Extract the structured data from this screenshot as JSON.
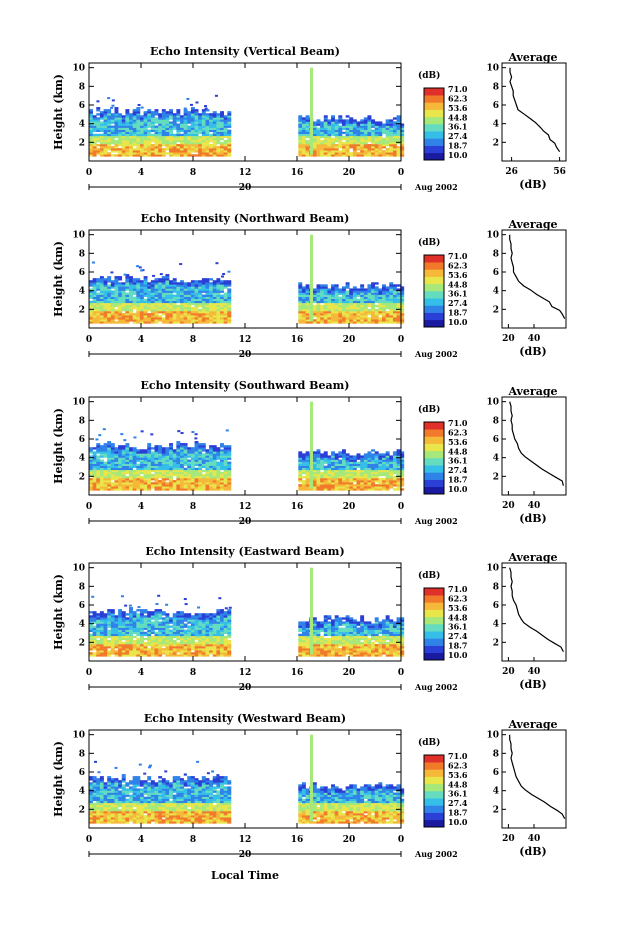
{
  "chart_data": {
    "type": "heatmap",
    "xlabel": "Local Time",
    "date_day": "20",
    "date_label": "Aug 2002",
    "colorbar": {
      "unit": "(dB)",
      "ticks": [
        "71.0",
        "62.3",
        "53.6",
        "44.8",
        "36.1",
        "27.4",
        "18.7",
        "10.0"
      ],
      "colors": [
        "#1a1aa0",
        "#2a3fd6",
        "#2f82e8",
        "#35bfe8",
        "#63dcc0",
        "#a6e87a",
        "#e8e64a",
        "#f5b838",
        "#f07a2a",
        "#e0302a"
      ]
    },
    "x_ticks": [
      "0",
      "4",
      "8",
      "12",
      "16",
      "20",
      "0"
    ],
    "y_ticks": [
      "2",
      "4",
      "6",
      "8",
      "10"
    ],
    "ylabel": "Height (km)",
    "avg_title": "Average",
    "avg_xlabel": "(dB)",
    "panels": [
      {
        "title": "Echo Intensity (Vertical Beam)",
        "avg_xticks": [
          "26",
          "56"
        ],
        "avg_xlim": [
          20,
          60
        ],
        "avg_profile": [
          [
            56,
            1.0
          ],
          [
            54,
            1.5
          ],
          [
            53,
            1.9
          ],
          [
            50,
            2.3
          ],
          [
            49,
            2.8
          ],
          [
            46,
            3.2
          ],
          [
            44,
            3.6
          ],
          [
            41,
            4.1
          ],
          [
            38,
            4.5
          ],
          [
            34,
            5.0
          ],
          [
            30,
            5.5
          ],
          [
            29,
            6.0
          ],
          [
            28,
            6.5
          ],
          [
            27,
            7.0
          ],
          [
            27,
            7.5
          ],
          [
            26,
            8.0
          ],
          [
            25,
            8.5
          ],
          [
            26,
            9.0
          ],
          [
            25,
            9.5
          ],
          [
            25,
            10.0
          ]
        ]
      },
      {
        "title": "Echo Intensity (Northward Beam)",
        "avg_xticks": [
          "20",
          "40"
        ],
        "avg_xlim": [
          15,
          65
        ],
        "avg_profile": [
          [
            64,
            1.0
          ],
          [
            62,
            1.5
          ],
          [
            60,
            1.9
          ],
          [
            54,
            2.3
          ],
          [
            52,
            2.8
          ],
          [
            47,
            3.2
          ],
          [
            42,
            3.6
          ],
          [
            37,
            4.1
          ],
          [
            32,
            4.5
          ],
          [
            28,
            5.0
          ],
          [
            26,
            5.5
          ],
          [
            24,
            6.0
          ],
          [
            24,
            6.5
          ],
          [
            23,
            7.0
          ],
          [
            22,
            7.5
          ],
          [
            23,
            8.0
          ],
          [
            22,
            8.5
          ],
          [
            22,
            9.0
          ],
          [
            21,
            9.5
          ],
          [
            21,
            10.0
          ]
        ]
      },
      {
        "title": "Echo Intensity (Southward Beam)",
        "avg_xticks": [
          "20",
          "40"
        ],
        "avg_xlim": [
          15,
          65
        ],
        "avg_profile": [
          [
            63,
            1.0
          ],
          [
            62,
            1.5
          ],
          [
            57,
            1.9
          ],
          [
            52,
            2.3
          ],
          [
            46,
            2.8
          ],
          [
            42,
            3.2
          ],
          [
            38,
            3.6
          ],
          [
            33,
            4.1
          ],
          [
            30,
            4.5
          ],
          [
            28,
            5.0
          ],
          [
            27,
            5.5
          ],
          [
            25,
            6.0
          ],
          [
            24,
            6.5
          ],
          [
            23,
            7.0
          ],
          [
            23,
            7.5
          ],
          [
            22,
            8.0
          ],
          [
            23,
            8.5
          ],
          [
            22,
            9.0
          ],
          [
            22,
            9.5
          ],
          [
            21,
            10.0
          ]
        ]
      },
      {
        "title": "Echo Intensity (Eastward Beam)",
        "avg_xticks": [
          "20",
          "40"
        ],
        "avg_xlim": [
          15,
          65
        ],
        "avg_profile": [
          [
            63,
            1.0
          ],
          [
            61,
            1.5
          ],
          [
            56,
            1.9
          ],
          [
            51,
            2.3
          ],
          [
            46,
            2.8
          ],
          [
            42,
            3.2
          ],
          [
            37,
            3.6
          ],
          [
            32,
            4.1
          ],
          [
            30,
            4.5
          ],
          [
            28,
            5.0
          ],
          [
            27,
            5.5
          ],
          [
            26,
            6.0
          ],
          [
            24,
            6.5
          ],
          [
            23,
            7.0
          ],
          [
            23,
            7.5
          ],
          [
            22,
            8.0
          ],
          [
            23,
            8.5
          ],
          [
            22,
            9.0
          ],
          [
            22,
            9.5
          ],
          [
            21,
            10.0
          ]
        ]
      },
      {
        "title": "Echo Intensity (Westward Beam)",
        "avg_xticks": [
          "20",
          "40"
        ],
        "avg_xlim": [
          15,
          65
        ],
        "avg_profile": [
          [
            64,
            1.0
          ],
          [
            62,
            1.5
          ],
          [
            58,
            1.9
          ],
          [
            53,
            2.3
          ],
          [
            48,
            2.8
          ],
          [
            43,
            3.2
          ],
          [
            38,
            3.6
          ],
          [
            33,
            4.1
          ],
          [
            30,
            4.5
          ],
          [
            28,
            5.0
          ],
          [
            26,
            5.5
          ],
          [
            25,
            6.0
          ],
          [
            24,
            6.5
          ],
          [
            23,
            7.0
          ],
          [
            22,
            7.5
          ],
          [
            23,
            8.0
          ],
          [
            22,
            8.5
          ],
          [
            22,
            9.0
          ],
          [
            21,
            9.5
          ],
          [
            21,
            10.0
          ]
        ]
      }
    ]
  }
}
